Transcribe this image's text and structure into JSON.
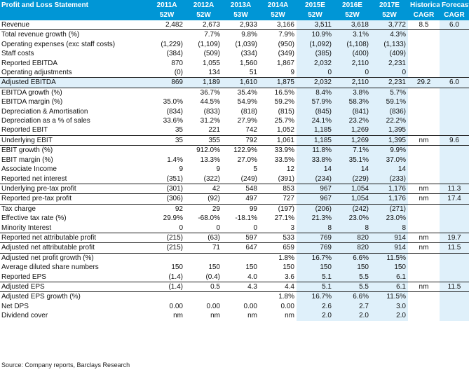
{
  "header": {
    "title": "Profit and Loss Statement",
    "years": [
      "2011A",
      "2012A",
      "2013A",
      "2014A",
      "2015E",
      "2016E",
      "2017E"
    ],
    "weeks": [
      "52W",
      "52W",
      "53W",
      "52W",
      "52W",
      "52W",
      "52W"
    ],
    "hist_cagr_line1": "Historical",
    "hist_cagr_line2": "CAGR",
    "fc_cagr_line1": "Forecast",
    "fc_cagr_line2": "CAGR"
  },
  "rows": [
    {
      "label": "Revenue",
      "values": [
        "2,482",
        "2,673",
        "2,933",
        "3,166",
        "3,511",
        "3,618",
        "3,772"
      ],
      "hist": "8.5",
      "fc": "6.0",
      "highlight": false,
      "bold_line": false
    },
    {
      "label": "Total revenue growth (%)",
      "values": [
        "",
        "7.7%",
        "9.8%",
        "7.9%",
        "10.9%",
        "3.1%",
        "4.3%"
      ],
      "hist": "",
      "fc": "",
      "highlight": false,
      "bold_line": true
    },
    {
      "label": "Operating expenses (exc staff costs)",
      "values": [
        "(1,229)",
        "(1,109)",
        "(1,039)",
        "(950)",
        "(1,092)",
        "(1,108)",
        "(1,133)"
      ],
      "hist": "",
      "fc": "",
      "highlight": false,
      "bold_line": false
    },
    {
      "label": "Staff costs",
      "values": [
        "(384)",
        "(509)",
        "(334)",
        "(349)",
        "(385)",
        "(400)",
        "(409)"
      ],
      "hist": "",
      "fc": "",
      "highlight": false,
      "bold_line": false
    },
    {
      "label": "Reported EBITDA",
      "values": [
        "870",
        "1,055",
        "1,560",
        "1,867",
        "2,032",
        "2,110",
        "2,231"
      ],
      "hist": "",
      "fc": "",
      "highlight": false,
      "bold_line": false
    },
    {
      "label": "Operating adjustments",
      "values": [
        "(0)",
        "134",
        "51",
        "9",
        "0",
        "0",
        "0"
      ],
      "hist": "",
      "fc": "",
      "highlight": false,
      "bold_line": false
    },
    {
      "label": "Adjusted EBITDA",
      "values": [
        "869",
        "1,189",
        "1,610",
        "1,875",
        "2,032",
        "2,110",
        "2,231"
      ],
      "hist": "29.2",
      "fc": "6.0",
      "highlight": true,
      "bold_line": true
    },
    {
      "label": "EBITDA growth (%)",
      "values": [
        "",
        "36.7%",
        "35.4%",
        "16.5%",
        "8.4%",
        "3.8%",
        "5.7%"
      ],
      "hist": "",
      "fc": "",
      "highlight": false,
      "bold_line": true
    },
    {
      "label": "EBITDA margin (%)",
      "values": [
        "35.0%",
        "44.5%",
        "54.9%",
        "59.2%",
        "57.9%",
        "58.3%",
        "59.1%"
      ],
      "hist": "",
      "fc": "",
      "highlight": false,
      "bold_line": false
    },
    {
      "label": "Depreciation & Amortisation",
      "values": [
        "(834)",
        "(833)",
        "(818)",
        "(815)",
        "(845)",
        "(841)",
        "(836)"
      ],
      "hist": "",
      "fc": "",
      "highlight": false,
      "bold_line": false
    },
    {
      "label": "Depreciation as a % of sales",
      "values": [
        "33.6%",
        "31.2%",
        "27.9%",
        "25.7%",
        "24.1%",
        "23.2%",
        "22.2%"
      ],
      "hist": "",
      "fc": "",
      "highlight": false,
      "bold_line": false
    },
    {
      "label": "Reported EBIT",
      "values": [
        "35",
        "221",
        "742",
        "1,052",
        "1,185",
        "1,269",
        "1,395"
      ],
      "hist": "",
      "fc": "",
      "highlight": false,
      "bold_line": false
    },
    {
      "label": "Underlying EBIT",
      "values": [
        "35",
        "355",
        "792",
        "1,061",
        "1,185",
        "1,269",
        "1,395"
      ],
      "hist": "nm",
      "fc": "9.6",
      "highlight": false,
      "bold_line": true
    },
    {
      "label": "EBIT growth (%)",
      "values": [
        "",
        "912.0%",
        "122.9%",
        "33.9%",
        "11.8%",
        "7.1%",
        "9.9%"
      ],
      "hist": "",
      "fc": "",
      "highlight": false,
      "bold_line": true
    },
    {
      "label": "EBIT margin (%)",
      "values": [
        "1.4%",
        "13.3%",
        "27.0%",
        "33.5%",
        "33.8%",
        "35.1%",
        "37.0%"
      ],
      "hist": "",
      "fc": "",
      "highlight": false,
      "bold_line": false
    },
    {
      "label": "Associate Income",
      "values": [
        "9",
        "9",
        "5",
        "12",
        "14",
        "14",
        "14"
      ],
      "hist": "",
      "fc": "",
      "highlight": false,
      "bold_line": false
    },
    {
      "label": "Reported net interest",
      "values": [
        "(351)",
        "(322)",
        "(249)",
        "(391)",
        "(234)",
        "(229)",
        "(233)"
      ],
      "hist": "",
      "fc": "",
      "highlight": false,
      "bold_line": false
    },
    {
      "label": "Underlying pre-tax profit",
      "values": [
        "(301)",
        "42",
        "548",
        "853",
        "967",
        "1,054",
        "1,176"
      ],
      "hist": "nm",
      "fc": "11.3",
      "highlight": false,
      "bold_line": true
    },
    {
      "label": "Reported pre-tax profit",
      "values": [
        "(306)",
        "(92)",
        "497",
        "727",
        "967",
        "1,054",
        "1,176"
      ],
      "hist": "nm",
      "fc": "17.4",
      "highlight": false,
      "bold_line": true
    },
    {
      "label": "Tax charge",
      "values": [
        "92",
        "29",
        "99",
        "(197)",
        "(206)",
        "(242)",
        "(271)"
      ],
      "hist": "",
      "fc": "",
      "highlight": false,
      "bold_line": true
    },
    {
      "label": "Effective tax rate (%)",
      "values": [
        "29.9%",
        "-68.0%",
        "-18.1%",
        "27.1%",
        "21.3%",
        "23.0%",
        "23.0%"
      ],
      "hist": "",
      "fc": "",
      "highlight": false,
      "bold_line": false
    },
    {
      "label": "Minority Interest",
      "values": [
        "0",
        "0",
        "0",
        "3",
        "8",
        "8",
        "8"
      ],
      "hist": "",
      "fc": "",
      "highlight": false,
      "bold_line": false
    },
    {
      "label": "Reported net attributable profit",
      "values": [
        "(215)",
        "(63)",
        "597",
        "533",
        "769",
        "820",
        "914"
      ],
      "hist": "nm",
      "fc": "19.7",
      "highlight": false,
      "bold_line": true
    },
    {
      "label": "Adjusted net attributable profit",
      "values": [
        "(215)",
        "71",
        "647",
        "659",
        "769",
        "820",
        "914"
      ],
      "hist": "nm",
      "fc": "11.5",
      "highlight": false,
      "bold_line": true
    },
    {
      "label": "Adjusted net profit growth (%)",
      "values": [
        "",
        "",
        "",
        "1.8%",
        "16.7%",
        "6.6%",
        "11.5%"
      ],
      "hist": "",
      "fc": "",
      "highlight": false,
      "bold_line": true
    },
    {
      "label": "Average diluted share numbers",
      "values": [
        "150",
        "150",
        "150",
        "150",
        "150",
        "150",
        "150"
      ],
      "hist": "",
      "fc": "",
      "highlight": false,
      "bold_line": false
    },
    {
      "label": "Reported EPS",
      "values": [
        "(1.4)",
        "(0.4)",
        "4.0",
        "3.6",
        "5.1",
        "5.5",
        "6.1"
      ],
      "hist": "",
      "fc": "",
      "highlight": false,
      "bold_line": false
    },
    {
      "label": "Adjusted EPS",
      "values": [
        "(1.4)",
        "0.5",
        "4.3",
        "4.4",
        "5.1",
        "5.5",
        "6.1"
      ],
      "hist": "nm",
      "fc": "11.5",
      "highlight": false,
      "bold_line": true
    },
    {
      "label": "Adjusted EPS growth (%)",
      "values": [
        "",
        "",
        "",
        "1.8%",
        "16.7%",
        "6.6%",
        "11.5%"
      ],
      "hist": "",
      "fc": "",
      "highlight": false,
      "bold_line": true
    },
    {
      "label": "Net DPS",
      "values": [
        "0.00",
        "0.00",
        "0.00",
        "0.00",
        "2.6",
        "2.7",
        "3.0"
      ],
      "hist": "",
      "fc": "",
      "highlight": false,
      "bold_line": false
    },
    {
      "label": "Dividend cover",
      "values": [
        "nm",
        "nm",
        "nm",
        "nm",
        "2.0",
        "2.0",
        "2.0"
      ],
      "hist": "",
      "fc": "",
      "highlight": false,
      "bold_line": false
    }
  ],
  "source": "Source: Company reports, Barclays Research",
  "colors": {
    "header_bg": "#0096d6",
    "projection_bg": "#dff0fa"
  }
}
